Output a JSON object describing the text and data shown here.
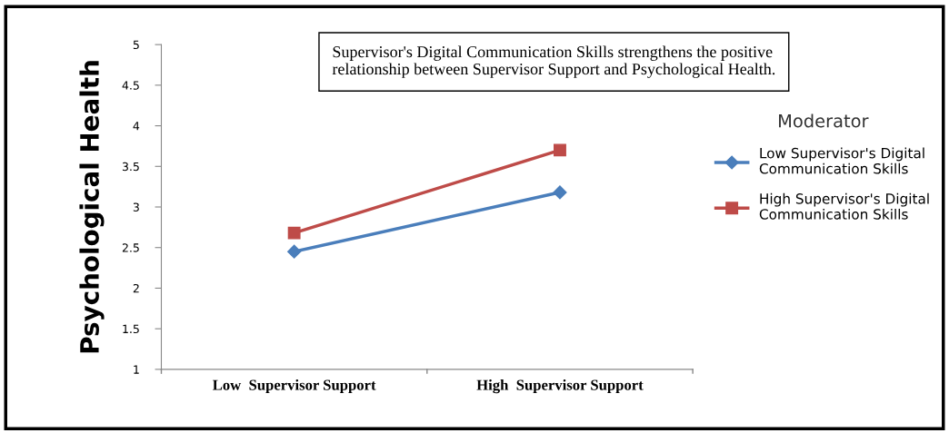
{
  "chart_data": {
    "type": "line",
    "ylabel": "Psychological Health",
    "legend_title": "Moderator",
    "categories": [
      "Low  Supervisor Support",
      "High  Supervisor Support"
    ],
    "series": [
      {
        "name": "Low Supervisor's Digital\nCommunication Skills",
        "color": "#4a7ebb",
        "marker": "diamond",
        "values": [
          2.45,
          3.18
        ]
      },
      {
        "name": "High Supervisor's Digital\nCommunication Skills",
        "color": "#be4b48",
        "marker": "square",
        "values": [
          2.68,
          3.7
        ]
      }
    ],
    "ylim": [
      1,
      5
    ],
    "yticks": [
      1,
      1.5,
      2,
      2.5,
      3,
      3.5,
      4,
      4.5,
      5
    ],
    "annotations": [
      "Supervisor's Digital Communication Skills strengthens the positive\nrelationship between Supervisor Support and Psychological Health."
    ],
    "legend": "right",
    "grid": false
  }
}
